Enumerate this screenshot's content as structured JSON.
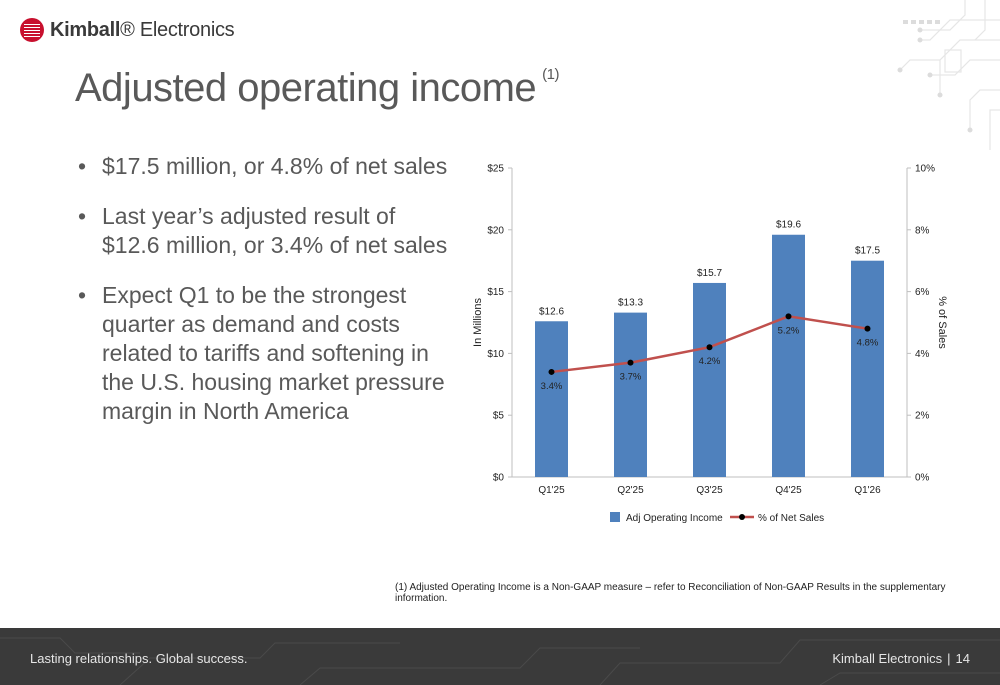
{
  "brand": {
    "name_bold": "Kimball",
    "name_light": "Electronics"
  },
  "title": {
    "text": "Adjusted operating income",
    "note": "(1)"
  },
  "bullets": [
    "$17.5 million, or 4.8% of net sales",
    "Last year’s adjusted result of $12.6 million, or 3.4% of net sales",
    "Expect Q1 to be the strongest quarter as demand and costs related to tariffs and softening in the U.S. housing market pressure margin in North America"
  ],
  "chart_data": {
    "type": "bar",
    "categories": [
      "Q1'25",
      "Q2'25",
      "Q3'25",
      "Q4'25",
      "Q1'26"
    ],
    "series": [
      {
        "name": "Adj Operating Income",
        "type": "bar",
        "axis": "left",
        "values": [
          12.6,
          13.3,
          15.7,
          19.6,
          17.5
        ],
        "labels": [
          "$12.6",
          "$13.3",
          "$15.7",
          "$19.6",
          "$17.5"
        ],
        "color": "#4f81bd"
      },
      {
        "name": "% of Net Sales",
        "type": "line",
        "axis": "right",
        "values": [
          3.4,
          3.7,
          4.2,
          5.2,
          4.8
        ],
        "labels": [
          "3.4%",
          "3.7%",
          "4.2%",
          "5.2%",
          "4.8%"
        ],
        "color": "#c0504d",
        "marker_color": "#000000"
      }
    ],
    "ylabel": "In Millions",
    "y2label": "% of Sales",
    "ylim": [
      0,
      25
    ],
    "y2lim": [
      0,
      10
    ],
    "yticks": [
      "$0",
      "$5",
      "$10",
      "$15",
      "$20",
      "$25"
    ],
    "y2ticks": [
      "0%",
      "2%",
      "4%",
      "6%",
      "8%",
      "10%"
    ],
    "grid": false,
    "legend_position": "bottom"
  },
  "footnote": "(1)  Adjusted Operating Income is a Non-GAAP measure – refer to Reconciliation of Non-GAAP Results in the supplementary information.",
  "footer": {
    "tagline": "Lasting relationships. Global success.",
    "company": "Kimball Electronics",
    "separator": "|",
    "page": "14"
  },
  "colors": {
    "accent": "#c8102e",
    "bar": "#4f81bd",
    "line": "#c0504d",
    "footer_bg": "#3a3a3a",
    "text": "#595959"
  },
  "icons": [
    "kimball-logo-icon",
    "circuit-decoration"
  ]
}
